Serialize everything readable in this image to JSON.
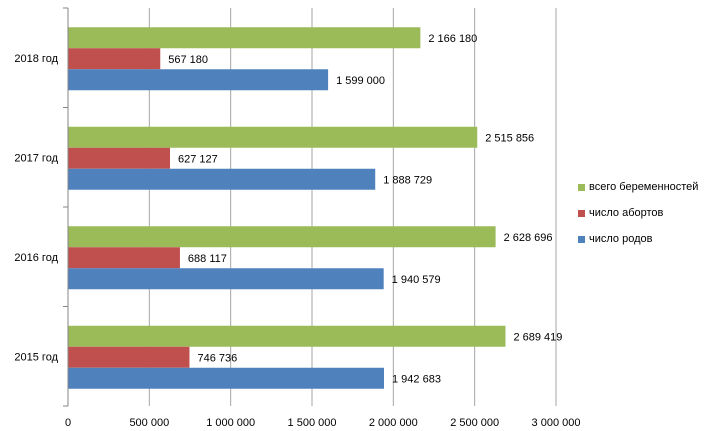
{
  "chart_data": {
    "type": "bar",
    "orientation": "horizontal",
    "categories": [
      "2015 год",
      "2016 год",
      "2017 год",
      "2018 год"
    ],
    "series": [
      {
        "name": "всего беременностей",
        "color": "#9bbb59",
        "values": [
          2689419,
          2628696,
          2515856,
          2166180
        ],
        "labels": [
          "2 689 419",
          "2 628 696",
          "2 515 856",
          "2 166 180"
        ]
      },
      {
        "name": "число абортов",
        "color": "#c0504d",
        "values": [
          746736,
          688117,
          627127,
          567180
        ],
        "labels": [
          "746 736",
          "688 117",
          "627 127",
          "567 180"
        ]
      },
      {
        "name": "число родов",
        "color": "#4f81bd",
        "values": [
          1942683,
          1940579,
          1888729,
          1599000
        ],
        "labels": [
          "1 942 683",
          "1 940 579",
          "1 888 729",
          "1 599 000"
        ]
      }
    ],
    "xlim": [
      0,
      3000000
    ],
    "x_ticks": [
      0,
      500000,
      1000000,
      1500000,
      2000000,
      2500000,
      3000000
    ],
    "x_tick_labels": [
      "0",
      "500 000",
      "1 000 000",
      "1 500 000",
      "2 000 000",
      "2 500 000",
      "3 000 000"
    ],
    "grid": true,
    "legend_position": "right"
  }
}
